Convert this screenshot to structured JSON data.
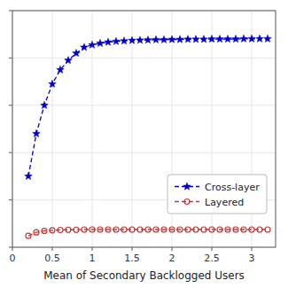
{
  "chart_data": {
    "type": "line",
    "xlabel": "Mean of Secondary Backlogged Users",
    "x": [
      0.2,
      0.3,
      0.4,
      0.5,
      0.6,
      0.7,
      0.8,
      0.9,
      1.0,
      1.1,
      1.2,
      1.3,
      1.4,
      1.5,
      1.6,
      1.7,
      1.8,
      1.9,
      2.0,
      2.1,
      2.2,
      2.3,
      2.4,
      2.5,
      2.6,
      2.7,
      2.8,
      2.9,
      3.0,
      3.1,
      3.2
    ],
    "series": [
      {
        "name": "Cross-layer",
        "color": "#0000cc",
        "marker": "star",
        "line_style": "dashed",
        "values": [
          0.3,
          0.48,
          0.6,
          0.69,
          0.75,
          0.79,
          0.82,
          0.845,
          0.855,
          0.862,
          0.867,
          0.87,
          0.872,
          0.874,
          0.875,
          0.876,
          0.877,
          0.877,
          0.878,
          0.878,
          0.879,
          0.879,
          0.879,
          0.88,
          0.88,
          0.88,
          0.88,
          0.881,
          0.881,
          0.881,
          0.881
        ]
      },
      {
        "name": "Layered",
        "color": "#cc3333",
        "marker": "circle-open",
        "line_style": "dashed",
        "values": [
          0.048,
          0.063,
          0.069,
          0.072,
          0.073,
          0.074,
          0.074,
          0.075,
          0.075,
          0.075,
          0.075,
          0.075,
          0.075,
          0.075,
          0.075,
          0.075,
          0.075,
          0.075,
          0.075,
          0.075,
          0.075,
          0.075,
          0.075,
          0.075,
          0.075,
          0.075,
          0.075,
          0.075,
          0.075,
          0.075,
          0.075
        ]
      }
    ],
    "xlim": [
      0,
      3.3
    ],
    "ylim": [
      0,
      1.0
    ],
    "xticks": [
      0,
      0.5,
      1.0,
      1.5,
      2.0,
      2.5,
      3.0
    ],
    "yticks": [
      0,
      0.2,
      0.4,
      0.6,
      0.8,
      1.0
    ],
    "tick_labels": "x",
    "legend": "lower right"
  }
}
